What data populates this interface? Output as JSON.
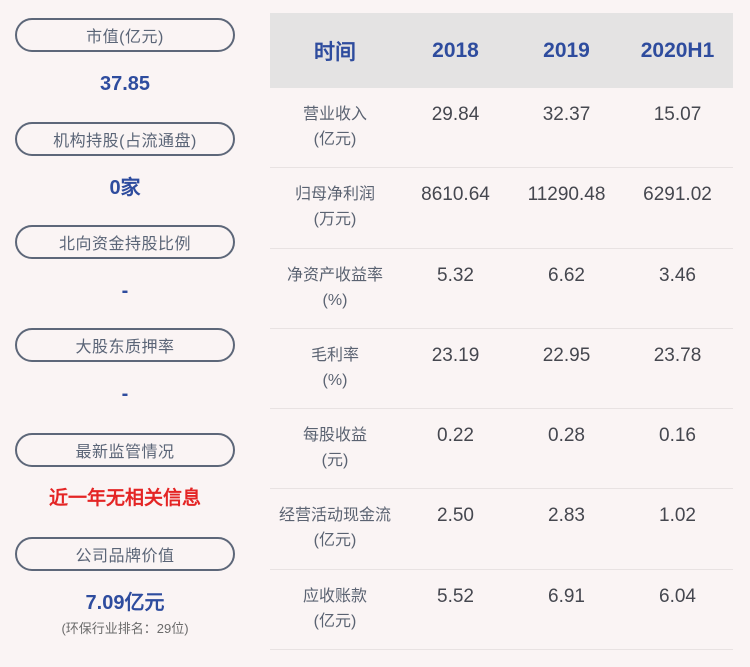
{
  "colors": {
    "background": "#faf4f4",
    "accent_blue": "#2e4c9e",
    "alert_red": "#e42525",
    "pill_border": "#5d6779",
    "pill_text": "#5b6577",
    "table_header_bg": "#e4e3e3",
    "table_label_text": "#5b6372",
    "table_value_text": "#45474f",
    "subtext_gray": "#6b6b6b"
  },
  "sidebar": {
    "items": [
      {
        "label": "市值(亿元)",
        "value": "37.85",
        "value_type": "blue"
      },
      {
        "label": "机构持股(占流通盘)",
        "value": "0家",
        "value_type": "blue"
      },
      {
        "label": "北向资金持股比例",
        "value": "-",
        "value_type": "blue"
      },
      {
        "label": "大股东质押率",
        "value": "-",
        "value_type": "blue"
      },
      {
        "label": "最新监管情况",
        "value": "近一年无相关信息",
        "value_type": "red"
      },
      {
        "label": "公司品牌价值",
        "value": "7.09亿元",
        "value_type": "blue",
        "subvalue": "(环保行业排名：29位)"
      }
    ]
  },
  "table": {
    "header": [
      "时间",
      "2018",
      "2019",
      "2020H1"
    ],
    "rows": [
      {
        "name": "营业收入",
        "unit": "(亿元)",
        "values": [
          "29.84",
          "32.37",
          "15.07"
        ]
      },
      {
        "name": "归母净利润",
        "unit": "(万元)",
        "values": [
          "8610.64",
          "11290.48",
          "6291.02"
        ]
      },
      {
        "name": "净资产收益率",
        "unit": "(%)",
        "values": [
          "5.32",
          "6.62",
          "3.46"
        ]
      },
      {
        "name": "毛利率",
        "unit": "(%)",
        "values": [
          "23.19",
          "22.95",
          "23.78"
        ]
      },
      {
        "name": "每股收益",
        "unit": "(元)",
        "values": [
          "0.22",
          "0.28",
          "0.16"
        ]
      },
      {
        "name": "经营活动现金流",
        "unit": "(亿元)",
        "values": [
          "2.50",
          "2.83",
          "1.02"
        ]
      },
      {
        "name": "应收账款",
        "unit": "(亿元)",
        "values": [
          "5.52",
          "6.91",
          "6.04"
        ]
      }
    ]
  },
  "chart_data": {
    "type": "table",
    "columns": [
      "时间",
      "2018",
      "2019",
      "2020H1"
    ],
    "rows": [
      [
        "营业收入(亿元)",
        29.84,
        32.37,
        15.07
      ],
      [
        "归母净利润(万元)",
        8610.64,
        11290.48,
        6291.02
      ],
      [
        "净资产收益率(%)",
        5.32,
        6.62,
        3.46
      ],
      [
        "毛利率(%)",
        23.19,
        22.95,
        23.78
      ],
      [
        "每股收益(元)",
        0.22,
        0.28,
        0.16
      ],
      [
        "经营活动现金流(亿元)",
        2.5,
        2.83,
        1.02
      ],
      [
        "应收账款(亿元)",
        5.52,
        6.91,
        6.04
      ]
    ],
    "side_stats": [
      {
        "label": "市值(亿元)",
        "value": "37.85"
      },
      {
        "label": "机构持股(占流通盘)",
        "value": "0家"
      },
      {
        "label": "北向资金持股比例",
        "value": "-"
      },
      {
        "label": "大股东质押率",
        "value": "-"
      },
      {
        "label": "最新监管情况",
        "value": "近一年无相关信息"
      },
      {
        "label": "公司品牌价值",
        "value": "7.09亿元",
        "note": "(环保行业排名：29位)"
      }
    ],
    "legend_position": "none",
    "grid": false
  }
}
